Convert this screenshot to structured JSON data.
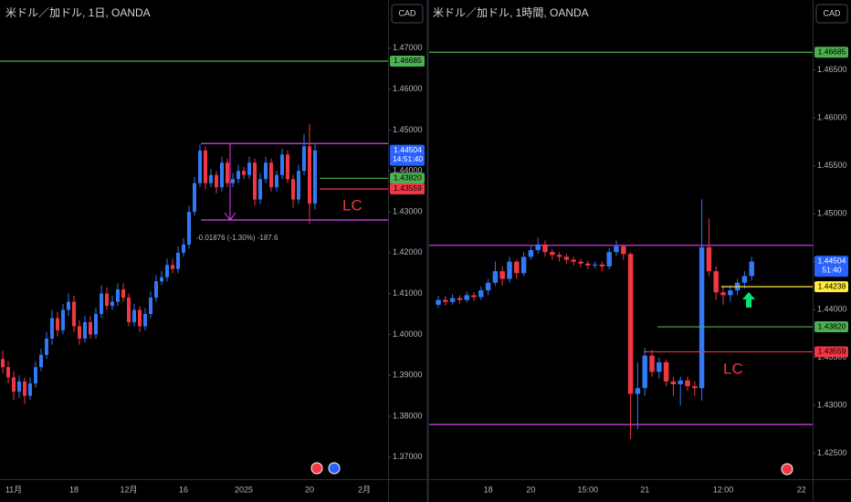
{
  "chart_data": [
    {
      "type": "candlestick",
      "title": "米ドル／加ドル, 1日, OANDA",
      "currency": "CAD",
      "up_color": "#3179f5",
      "down_color": "#f23645",
      "categories": [
        null,
        null,
        "11月",
        null,
        null,
        null,
        null,
        null,
        null,
        null,
        null,
        null,
        null,
        "18",
        null,
        null,
        null,
        null,
        null,
        null,
        null,
        null,
        null,
        "12月",
        null,
        null,
        null,
        null,
        null,
        null,
        null,
        null,
        null,
        "16",
        null,
        null,
        null,
        null,
        null,
        null,
        null,
        null,
        null,
        null,
        "2025",
        null,
        null,
        null,
        null,
        null,
        null,
        null,
        null,
        null,
        null,
        null,
        "20",
        null,
        null,
        null,
        null,
        null,
        null,
        null,
        null,
        null,
        "2月",
        null,
        null,
        null
      ],
      "open": [
        1.394,
        1.392,
        1.3895,
        1.386,
        1.3885,
        1.385,
        1.388,
        1.392,
        1.395,
        1.399,
        1.404,
        1.401,
        1.406,
        1.408,
        1.402,
        1.399,
        1.403,
        1.4,
        1.405,
        1.41,
        1.407,
        1.408,
        1.411,
        1.409,
        1.403,
        1.406,
        1.402,
        1.405,
        1.409,
        1.413,
        1.414,
        1.417,
        1.416,
        1.42,
        1.422,
        1.43,
        1.437,
        1.445,
        1.437,
        1.439,
        1.436,
        1.442,
        1.437,
        1.438,
        1.44,
        1.439,
        1.442,
        1.433,
        1.438,
        1.442,
        1.436,
        1.439,
        1.444,
        1.438,
        1.433,
        1.44,
        1.446,
        1.432,
        null,
        null,
        null,
        null,
        null,
        null,
        null,
        null,
        null,
        null,
        null,
        null
      ],
      "high": [
        1.396,
        1.3935,
        1.391,
        1.39,
        1.3895,
        1.3895,
        1.3935,
        1.3965,
        1.4005,
        1.406,
        1.4055,
        1.4075,
        1.41,
        1.4095,
        1.4035,
        1.4045,
        1.4045,
        1.4065,
        1.412,
        1.4115,
        1.4095,
        1.4125,
        1.4125,
        1.41,
        1.4075,
        1.407,
        1.4065,
        1.4105,
        1.4145,
        1.4155,
        1.4185,
        1.4185,
        1.4215,
        1.4235,
        1.4315,
        1.4385,
        1.4465,
        1.446,
        1.4405,
        1.44,
        1.4435,
        1.443,
        1.4395,
        1.4415,
        1.441,
        1.4435,
        1.443,
        1.4395,
        1.4435,
        1.443,
        1.44,
        1.4455,
        1.445,
        1.439,
        1.4415,
        1.449,
        1.4515,
        1.4465,
        null,
        null,
        null,
        null,
        null,
        null,
        null,
        null,
        null,
        null,
        null,
        null
      ],
      "low": [
        1.3905,
        1.388,
        1.384,
        1.3845,
        1.383,
        1.384,
        1.387,
        1.391,
        1.394,
        1.3975,
        1.3995,
        1.4,
        1.4045,
        1.4005,
        1.3975,
        1.398,
        1.399,
        1.399,
        1.404,
        1.406,
        1.406,
        1.407,
        1.408,
        1.402,
        1.402,
        1.4005,
        1.401,
        1.404,
        1.408,
        1.412,
        1.413,
        1.415,
        1.415,
        1.419,
        1.421,
        1.429,
        1.436,
        1.4355,
        1.436,
        1.4345,
        1.435,
        1.436,
        1.436,
        1.437,
        1.438,
        1.438,
        1.4315,
        1.432,
        1.437,
        1.435,
        1.435,
        1.438,
        1.437,
        1.431,
        1.432,
        1.439,
        1.427,
        1.4305,
        null,
        null,
        null,
        null,
        null,
        null,
        null,
        null,
        null,
        null,
        null,
        null
      ],
      "close": [
        1.392,
        1.3895,
        1.386,
        1.3885,
        1.385,
        1.388,
        1.392,
        1.395,
        1.399,
        1.404,
        1.401,
        1.406,
        1.408,
        1.402,
        1.399,
        1.403,
        1.4,
        1.405,
        1.41,
        1.407,
        1.408,
        1.411,
        1.409,
        1.403,
        1.406,
        1.402,
        1.405,
        1.409,
        1.413,
        1.414,
        1.417,
        1.416,
        1.42,
        1.422,
        1.43,
        1.437,
        1.445,
        1.437,
        1.439,
        1.436,
        1.442,
        1.437,
        1.438,
        1.44,
        1.439,
        1.442,
        1.433,
        1.438,
        1.442,
        1.436,
        1.439,
        1.444,
        1.438,
        1.433,
        1.44,
        1.446,
        1.432,
        1.445,
        null,
        null,
        null,
        null,
        null,
        null,
        null,
        null,
        null,
        null,
        null,
        null
      ],
      "ylim": [
        1.3646,
        1.4818
      ],
      "yticks": [
        {
          "value": 1.47,
          "label": "1.47000"
        },
        {
          "value": 1.46,
          "label": "1.46000"
        },
        {
          "value": 1.45,
          "label": "1.45000"
        },
        {
          "value": 1.44,
          "label": "1.44000"
        },
        {
          "value": 1.43,
          "label": "1.43000"
        },
        {
          "value": 1.42,
          "label": "1.42000"
        },
        {
          "value": 1.41,
          "label": "1.41000"
        },
        {
          "value": 1.4,
          "label": "1.40000"
        },
        {
          "value": 1.39,
          "label": "1.39000"
        },
        {
          "value": 1.38,
          "label": "1.38000"
        },
        {
          "value": 1.37,
          "label": "1.37000"
        }
      ],
      "lines": [
        {
          "value": 1.4467,
          "color": "#e040fb"
        },
        {
          "value": 1.428,
          "color": "#e040fb"
        }
      ],
      "tags": [
        {
          "value": 1.46685,
          "color": "#4caf50"
        },
        {
          "value": 1.4382,
          "label": "1.43820",
          "color": "#4caf50"
        },
        {
          "value": 1.43559,
          "color": "#f23645"
        }
      ],
      "last_price": {
        "value": 1.44504,
        "countdown": "14:51:40",
        "color": "#2962ff"
      },
      "annotations": [
        "-0.01876 (-1.30%) -187.6",
        "LC"
      ]
    },
    {
      "type": "candlestick",
      "title": "米ドル／加ドル, 1時間, OANDA",
      "currency": "CAD",
      "up_color": "#3179f5",
      "down_color": "#f23645",
      "categories": [
        null,
        null,
        null,
        null,
        null,
        null,
        null,
        "18",
        null,
        null,
        null,
        null,
        null,
        "20",
        null,
        null,
        null,
        null,
        null,
        null,
        null,
        "15:00",
        null,
        null,
        null,
        null,
        null,
        null,
        null,
        "21",
        null,
        null,
        null,
        null,
        null,
        null,
        null,
        null,
        null,
        null,
        "12:00",
        null,
        null,
        null,
        null,
        null,
        null,
        null,
        null,
        null,
        null,
        "22",
        null
      ],
      "open": [
        1.4405,
        1.441,
        1.4408,
        1.4412,
        1.441,
        1.4415,
        1.4413,
        1.442,
        1.4428,
        1.444,
        1.4432,
        1.445,
        1.4438,
        1.4455,
        1.4462,
        1.4468,
        1.446,
        1.4457,
        1.4455,
        1.4452,
        1.445,
        1.4448,
        1.4446,
        1.4447,
        1.4445,
        1.446,
        1.4466,
        1.4458,
        1.4312,
        1.4318,
        1.4352,
        1.4335,
        1.4345,
        1.4325,
        1.4322,
        1.4326,
        1.432,
        1.4318,
        1.4465,
        1.444,
        1.4418,
        1.4415,
        1.442,
        1.4428,
        1.4435,
        null,
        null,
        null,
        null,
        null,
        null,
        null,
        null
      ],
      "high": [
        1.4414,
        1.4414,
        1.4416,
        1.4415,
        1.4419,
        1.4418,
        1.4424,
        1.4432,
        1.445,
        1.4445,
        1.4455,
        1.4452,
        1.446,
        1.4466,
        1.4475,
        1.4472,
        1.4463,
        1.446,
        1.4458,
        1.4455,
        1.4453,
        1.4451,
        1.445,
        1.445,
        1.4464,
        1.4472,
        1.4468,
        1.446,
        1.4345,
        1.436,
        1.4358,
        1.435,
        1.4348,
        1.433,
        1.433,
        1.433,
        1.4325,
        1.4515,
        1.4495,
        1.4445,
        1.4425,
        1.4425,
        1.4432,
        1.444,
        1.4455,
        null,
        null,
        null,
        null,
        null,
        null,
        null,
        null
      ],
      "low": [
        1.4402,
        1.4404,
        1.4405,
        1.4406,
        1.4407,
        1.4409,
        1.441,
        1.4415,
        1.4425,
        1.4425,
        1.4428,
        1.4432,
        1.4435,
        1.4452,
        1.4458,
        1.4455,
        1.4452,
        1.445,
        1.4448,
        1.4446,
        1.4444,
        1.4442,
        1.4443,
        1.444,
        1.4442,
        1.4456,
        1.4452,
        1.4265,
        1.4275,
        1.431,
        1.433,
        1.4328,
        1.432,
        1.431,
        1.43,
        1.4315,
        1.431,
        1.4305,
        1.4435,
        1.441,
        1.4405,
        1.4408,
        1.4415,
        1.4422,
        1.443,
        null,
        null,
        null,
        null,
        null,
        null,
        null,
        null
      ],
      "close": [
        1.441,
        1.4408,
        1.4412,
        1.441,
        1.4415,
        1.4413,
        1.442,
        1.4428,
        1.444,
        1.4432,
        1.445,
        1.4438,
        1.4455,
        1.4462,
        1.4468,
        1.446,
        1.4457,
        1.4455,
        1.4452,
        1.445,
        1.4448,
        1.4446,
        1.4447,
        1.4445,
        1.446,
        1.4466,
        1.4458,
        1.4312,
        1.4318,
        1.4352,
        1.4335,
        1.4345,
        1.4325,
        1.4322,
        1.4326,
        1.432,
        1.4318,
        1.4465,
        1.444,
        1.4418,
        1.4415,
        1.442,
        1.4428,
        1.4435,
        1.445,
        null,
        null,
        null,
        null,
        null,
        null,
        null,
        null
      ],
      "ylim": [
        1.4223,
        1.4723
      ],
      "yticks": [
        {
          "value": 1.465,
          "label": "1.46500"
        },
        {
          "value": 1.46,
          "label": "1.46000"
        },
        {
          "value": 1.455,
          "label": "1.45500"
        },
        {
          "value": 1.45,
          "label": "1.45000"
        },
        {
          "value": 1.445,
          "label": "1.44500"
        },
        {
          "value": 1.44,
          "label": "1.44000"
        },
        {
          "value": 1.435,
          "label": "1.43500"
        },
        {
          "value": 1.43,
          "label": "1.43000"
        },
        {
          "value": 1.425,
          "label": "1.42500"
        }
      ],
      "lines": [
        {
          "value": 1.4467,
          "color": "#e040fb"
        },
        {
          "value": 1.428,
          "color": "#e040fb"
        }
      ],
      "tags": [
        {
          "value": 1.46685,
          "color": "#4caf50"
        },
        {
          "value": 1.44238,
          "color": "#ffeb3b"
        },
        {
          "value": 1.4382,
          "label": "1.43820",
          "color": "#4caf50"
        },
        {
          "value": 1.43559,
          "color": "#f23645"
        }
      ],
      "last_price": {
        "value": 1.44504,
        "countdown": "51:40",
        "color": "#2962ff"
      },
      "annotations": [
        "LC"
      ]
    }
  ]
}
